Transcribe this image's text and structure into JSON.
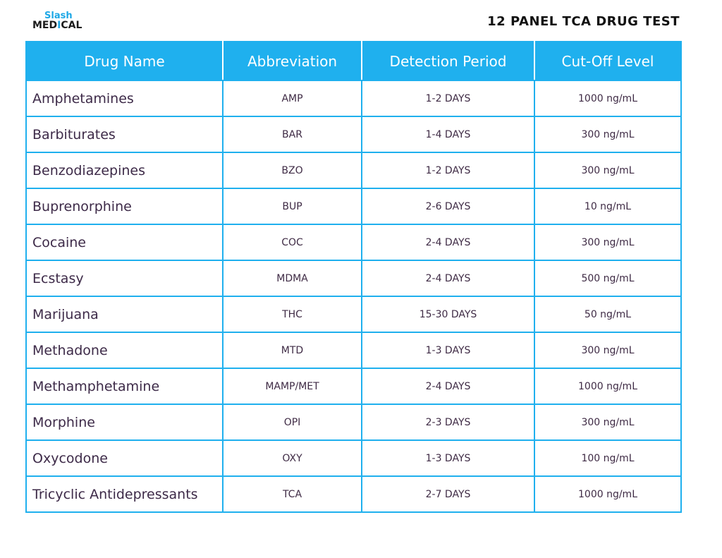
{
  "logo": {
    "top_text": "Slash",
    "bottom_left": "MED",
    "bottom_cross": "I",
    "bottom_right": "CAL"
  },
  "title": "12 PANEL TCA DRUG TEST",
  "colors": {
    "header_bg": "#1fb0ee",
    "border": "#1fb0ee",
    "text": "#3f2b45",
    "logo_blue": "#1fa8e6"
  },
  "table": {
    "headers": [
      "Drug Name",
      "Abbreviation",
      "Detection Period",
      "Cut-Off Level"
    ],
    "rows": [
      {
        "name": "Amphetamines",
        "abbr": "AMP",
        "period": "1-2 DAYS",
        "cutoff": "1000 ng/mL"
      },
      {
        "name": "Barbiturates",
        "abbr": "BAR",
        "period": "1-4 DAYS",
        "cutoff": "300 ng/mL"
      },
      {
        "name": "Benzodiazepines",
        "abbr": "BZO",
        "period": "1-2 DAYS",
        "cutoff": "300 ng/mL"
      },
      {
        "name": "Buprenorphine",
        "abbr": "BUP",
        "period": "2-6 DAYS",
        "cutoff": "10 ng/mL"
      },
      {
        "name": "Cocaine",
        "abbr": "COC",
        "period": "2-4 DAYS",
        "cutoff": "300 ng/mL"
      },
      {
        "name": "Ecstasy",
        "abbr": "MDMA",
        "period": "2-4 DAYS",
        "cutoff": "500 ng/mL"
      },
      {
        "name": "Marijuana",
        "abbr": "THC",
        "period": "15-30 DAYS",
        "cutoff": "50 ng/mL"
      },
      {
        "name": "Methadone",
        "abbr": "MTD",
        "period": "1-3 DAYS",
        "cutoff": "300 ng/mL"
      },
      {
        "name": "Methamphetamine",
        "abbr": "MAMP/MET",
        "period": "2-4 DAYS",
        "cutoff": "1000 ng/mL"
      },
      {
        "name": "Morphine",
        "abbr": "OPI",
        "period": "2-3 DAYS",
        "cutoff": "300 ng/mL"
      },
      {
        "name": "Oxycodone",
        "abbr": "OXY",
        "period": "1-3 DAYS",
        "cutoff": "100 ng/mL"
      },
      {
        "name": "Tricyclic Antidepressants",
        "abbr": "TCA",
        "period": "2-7 DAYS",
        "cutoff": "1000 ng/mL"
      }
    ]
  }
}
